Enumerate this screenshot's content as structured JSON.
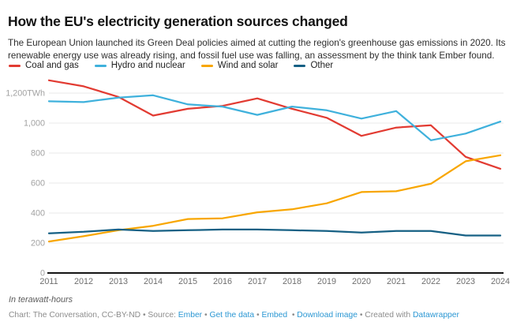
{
  "header": {
    "title": "How the EU's electricity generation sources changed",
    "subtitle": "The European Union launched its Green Deal policies aimed at cutting the region's greenhouse gas emissions in 2020. Its renewable energy use was already rising, and fossil fuel use was falling, an assessment by the think tank Ember found."
  },
  "chart_data": {
    "type": "line",
    "title": "How the EU's electricity generation sources changed",
    "x": [
      "2011",
      "2012",
      "2013",
      "2014",
      "2015",
      "2016",
      "2017",
      "2018",
      "2019",
      "2020",
      "2021",
      "2022",
      "2023",
      "2024"
    ],
    "series": [
      {
        "name": "Coal and gas",
        "color": "#e23b32",
        "values": [
          1285,
          1245,
          1175,
          1050,
          1095,
          1115,
          1165,
          1095,
          1035,
          915,
          970,
          985,
          775,
          695
        ]
      },
      {
        "name": "Hydro and nuclear",
        "color": "#3fb1dc",
        "values": [
          1145,
          1140,
          1170,
          1185,
          1125,
          1110,
          1055,
          1110,
          1085,
          1030,
          1080,
          885,
          930,
          1010
        ]
      },
      {
        "name": "Wind and solar",
        "color": "#f8a600",
        "values": [
          210,
          245,
          285,
          315,
          360,
          365,
          405,
          425,
          465,
          540,
          545,
          595,
          745,
          785
        ]
      },
      {
        "name": "Other",
        "color": "#166084",
        "values": [
          265,
          275,
          290,
          280,
          285,
          290,
          290,
          285,
          280,
          270,
          280,
          280,
          250,
          250
        ]
      }
    ],
    "ylabel": "TWh",
    "ylim": [
      0,
      1300
    ],
    "yticks": [
      {
        "value": 1200,
        "label": "1,200TWh"
      },
      {
        "value": 1000,
        "label": "1,000"
      },
      {
        "value": 800,
        "label": "800"
      },
      {
        "value": 600,
        "label": "600"
      },
      {
        "value": 400,
        "label": "400"
      },
      {
        "value": 200,
        "label": "200"
      },
      {
        "value": 0,
        "label": "0"
      }
    ],
    "grid": "horizontal",
    "legend_position": "top"
  },
  "footnote": "In terawatt-hours",
  "footer": {
    "link_color": "#2b97d3",
    "parts": [
      {
        "text": "Chart: The Conversation, CC-BY-ND • Source: ",
        "link": false
      },
      {
        "text": "Ember",
        "link": true
      },
      {
        "text": " • ",
        "link": false
      },
      {
        "text": "Get the data",
        "link": true
      },
      {
        "text": " • ",
        "link": false
      },
      {
        "text": "Embed",
        "link": true
      },
      {
        "text": "  • ",
        "link": false
      },
      {
        "text": "Download image",
        "link": true
      },
      {
        "text": " • Created with ",
        "link": false
      },
      {
        "text": "Datawrapper",
        "link": true
      }
    ]
  }
}
